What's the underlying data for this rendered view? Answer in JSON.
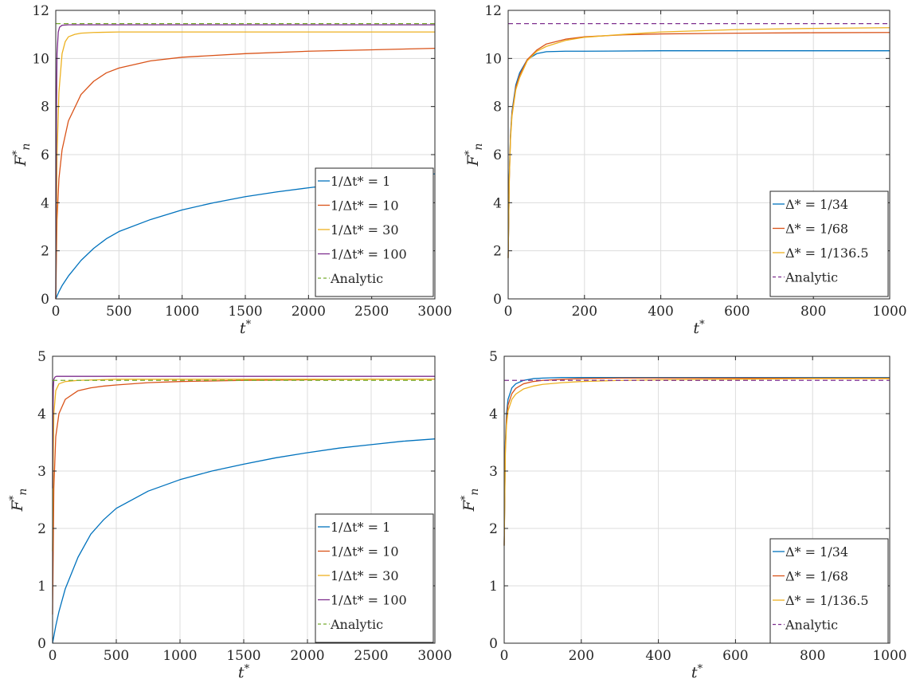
{
  "chart_data": [
    {
      "type": "line",
      "xlabel": "t*",
      "ylabel": "F*n",
      "xlim": [
        0,
        3000
      ],
      "ylim": [
        0,
        12
      ],
      "xticks": [
        "0",
        "500",
        "1000",
        "1500",
        "2000",
        "2500",
        "3000"
      ],
      "yticks": [
        "0",
        "2",
        "4",
        "6",
        "8",
        "10",
        "12"
      ],
      "xtick_values": [
        0,
        500,
        1000,
        1500,
        2000,
        2500,
        3000
      ],
      "ytick_values": [
        0,
        2,
        4,
        6,
        8,
        10,
        12
      ],
      "grid": true,
      "legend_position": "bottom-right",
      "series": [
        {
          "name": "1/Δt* = 1",
          "color": "#0072BD",
          "dash": false,
          "x": [
            0,
            25,
            50,
            100,
            200,
            300,
            400,
            500,
            750,
            1000,
            1250,
            1500,
            1750,
            2000,
            2250,
            2500,
            2750,
            3000
          ],
          "y": [
            0,
            0.3,
            0.55,
            0.95,
            1.6,
            2.1,
            2.5,
            2.8,
            3.3,
            3.7,
            4.0,
            4.25,
            4.45,
            4.62,
            4.78,
            4.92,
            5.06,
            5.2
          ]
        },
        {
          "name": "1/Δt* = 10",
          "color": "#D95319",
          "dash": false,
          "x": [
            0,
            10,
            25,
            50,
            100,
            200,
            300,
            400,
            500,
            750,
            1000,
            1500,
            2000,
            2500,
            3000
          ],
          "y": [
            0,
            3.3,
            5.0,
            6.2,
            7.4,
            8.5,
            9.05,
            9.4,
            9.6,
            9.9,
            10.05,
            10.2,
            10.3,
            10.36,
            10.42
          ]
        },
        {
          "name": "1/Δt* = 30",
          "color": "#EDB120",
          "dash": false,
          "x": [
            0,
            5,
            10,
            25,
            50,
            75,
            100,
            150,
            200,
            300,
            500,
            1000,
            2000,
            3000
          ],
          "y": [
            0,
            3.0,
            6.0,
            8.6,
            10.2,
            10.7,
            10.9,
            11.0,
            11.05,
            11.08,
            11.1,
            11.1,
            11.1,
            11.1
          ]
        },
        {
          "name": "1/Δt* = 100",
          "color": "#7E2F8E",
          "dash": false,
          "x": [
            0,
            3,
            6,
            10,
            20,
            30,
            50,
            100,
            500,
            1000,
            2000,
            3000
          ],
          "y": [
            0,
            5.0,
            8.0,
            10.2,
            11.1,
            11.3,
            11.38,
            11.4,
            11.4,
            11.4,
            11.4,
            11.4
          ]
        },
        {
          "name": "Analytic",
          "color": "#77AC30",
          "dash": true,
          "x": [
            0,
            3000
          ],
          "y": [
            11.45,
            11.45
          ]
        }
      ]
    },
    {
      "type": "line",
      "xlabel": "t*",
      "ylabel": "F*n",
      "xlim": [
        0,
        1000
      ],
      "ylim": [
        0,
        12
      ],
      "xticks": [
        "0",
        "200",
        "400",
        "600",
        "800",
        "1000"
      ],
      "yticks": [
        "0",
        "2",
        "4",
        "6",
        "8",
        "10",
        "12"
      ],
      "xtick_values": [
        0,
        200,
        400,
        600,
        800,
        1000
      ],
      "ytick_values": [
        0,
        2,
        4,
        6,
        8,
        10,
        12
      ],
      "grid": true,
      "legend_position": "bottom-right",
      "series": [
        {
          "name": "Δ* = 1/34",
          "color": "#0072BD",
          "dash": false,
          "x": [
            0,
            3,
            6,
            10,
            20,
            30,
            50,
            75,
            100,
            150,
            200,
            400,
            600,
            800,
            1000
          ],
          "y": [
            1.7,
            5.2,
            6.8,
            7.8,
            8.9,
            9.4,
            9.95,
            10.2,
            10.28,
            10.3,
            10.3,
            10.32,
            10.32,
            10.32,
            10.32
          ]
        },
        {
          "name": "Δ* = 1/68",
          "color": "#D95319",
          "dash": false,
          "x": [
            0,
            3,
            6,
            10,
            20,
            30,
            50,
            75,
            100,
            150,
            200,
            300,
            400,
            600,
            800,
            1000
          ],
          "y": [
            1.7,
            5.0,
            6.7,
            7.7,
            8.8,
            9.3,
            9.95,
            10.35,
            10.6,
            10.8,
            10.9,
            10.98,
            11.02,
            11.05,
            11.07,
            11.08
          ]
        },
        {
          "name": "Δ* = 1/136.5",
          "color": "#EDB120",
          "dash": false,
          "x": [
            0,
            3,
            6,
            10,
            20,
            30,
            50,
            75,
            100,
            150,
            200,
            300,
            400,
            600,
            800,
            1000
          ],
          "y": [
            1.7,
            5.0,
            6.6,
            7.6,
            8.7,
            9.2,
            9.9,
            10.3,
            10.5,
            10.75,
            10.88,
            11.0,
            11.1,
            11.2,
            11.25,
            11.28
          ]
        },
        {
          "name": "Analytic",
          "color": "#7E2F8E",
          "dash": true,
          "x": [
            0,
            1000
          ],
          "y": [
            11.45,
            11.45
          ]
        }
      ]
    },
    {
      "type": "line",
      "xlabel": "t*",
      "ylabel": "F*n",
      "xlim": [
        0,
        3000
      ],
      "ylim": [
        0,
        5
      ],
      "xticks": [
        "0",
        "500",
        "1000",
        "1500",
        "2000",
        "2500",
        "3000"
      ],
      "yticks": [
        "0",
        "1",
        "2",
        "3",
        "4",
        "5"
      ],
      "xtick_values": [
        0,
        500,
        1000,
        1500,
        2000,
        2500,
        3000
      ],
      "ytick_values": [
        0,
        1,
        2,
        3,
        4,
        5
      ],
      "grid": true,
      "legend_position": "bottom-right",
      "series": [
        {
          "name": "1/Δt* = 1",
          "color": "#0072BD",
          "dash": false,
          "x": [
            0,
            25,
            50,
            100,
            200,
            300,
            400,
            500,
            750,
            1000,
            1250,
            1500,
            1750,
            2000,
            2250,
            2500,
            2750,
            3000
          ],
          "y": [
            0,
            0.3,
            0.55,
            0.95,
            1.5,
            1.9,
            2.15,
            2.35,
            2.65,
            2.85,
            3.0,
            3.12,
            3.23,
            3.32,
            3.4,
            3.46,
            3.52,
            3.56
          ]
        },
        {
          "name": "1/Δt* = 10",
          "color": "#D95319",
          "dash": false,
          "x": [
            0,
            10,
            25,
            50,
            100,
            200,
            300,
            400,
            500,
            750,
            1000,
            1500,
            2000,
            2500,
            3000
          ],
          "y": [
            0.5,
            2.7,
            3.6,
            4.0,
            4.25,
            4.4,
            4.45,
            4.48,
            4.5,
            4.54,
            4.56,
            4.58,
            4.59,
            4.6,
            4.6
          ]
        },
        {
          "name": "1/Δt* = 30",
          "color": "#EDB120",
          "dash": false,
          "x": [
            0,
            5,
            10,
            25,
            50,
            100,
            200,
            500,
            1000,
            2000,
            3000
          ],
          "y": [
            1.6,
            3.2,
            4.0,
            4.4,
            4.52,
            4.56,
            4.58,
            4.6,
            4.6,
            4.6,
            4.6
          ]
        },
        {
          "name": "1/Δt* = 100",
          "color": "#7E2F8E",
          "dash": false,
          "x": [
            0,
            3,
            6,
            10,
            20,
            30,
            50,
            100,
            500,
            1000,
            2000,
            3000
          ],
          "y": [
            2.7,
            4.0,
            4.45,
            4.6,
            4.64,
            4.65,
            4.65,
            4.65,
            4.65,
            4.65,
            4.65,
            4.65
          ]
        },
        {
          "name": "Analytic",
          "color": "#77AC30",
          "dash": true,
          "x": [
            0,
            3000
          ],
          "y": [
            4.58,
            4.58
          ]
        }
      ]
    },
    {
      "type": "line",
      "xlabel": "t*",
      "ylabel": "F*n",
      "xlim": [
        0,
        1000
      ],
      "ylim": [
        0,
        5
      ],
      "xticks": [
        "0",
        "200",
        "400",
        "600",
        "800",
        "1000"
      ],
      "yticks": [
        "0",
        "1",
        "2",
        "3",
        "4",
        "5"
      ],
      "xtick_values": [
        0,
        200,
        400,
        600,
        800,
        1000
      ],
      "ytick_values": [
        0,
        1,
        2,
        3,
        4,
        5
      ],
      "grid": true,
      "legend_position": "bottom-right",
      "series": [
        {
          "name": "Δ* = 1/34",
          "color": "#0072BD",
          "dash": false,
          "x": [
            0,
            3,
            6,
            10,
            20,
            30,
            50,
            75,
            100,
            150,
            200,
            400,
            600,
            800,
            1000
          ],
          "y": [
            1.7,
            3.5,
            4.0,
            4.25,
            4.45,
            4.52,
            4.58,
            4.61,
            4.62,
            4.63,
            4.63,
            4.63,
            4.63,
            4.63,
            4.63
          ]
        },
        {
          "name": "Δ* = 1/68",
          "color": "#D95319",
          "dash": false,
          "x": [
            0,
            3,
            6,
            10,
            20,
            30,
            50,
            75,
            100,
            150,
            200,
            300,
            400,
            600,
            800,
            1000
          ],
          "y": [
            1.7,
            3.4,
            3.9,
            4.15,
            4.35,
            4.44,
            4.52,
            4.56,
            4.58,
            4.6,
            4.61,
            4.62,
            4.62,
            4.62,
            4.62,
            4.62
          ]
        },
        {
          "name": "Δ* = 1/136.5",
          "color": "#EDB120",
          "dash": false,
          "x": [
            0,
            3,
            6,
            10,
            20,
            30,
            50,
            75,
            100,
            150,
            200,
            300,
            400,
            600,
            800,
            1000
          ],
          "y": [
            1.7,
            3.3,
            3.8,
            4.05,
            4.25,
            4.34,
            4.43,
            4.48,
            4.51,
            4.54,
            4.56,
            4.58,
            4.59,
            4.6,
            4.61,
            4.61
          ]
        },
        {
          "name": "Analytic",
          "color": "#7E2F8E",
          "dash": true,
          "x": [
            0,
            1000
          ],
          "y": [
            4.58,
            4.58
          ]
        }
      ]
    }
  ]
}
